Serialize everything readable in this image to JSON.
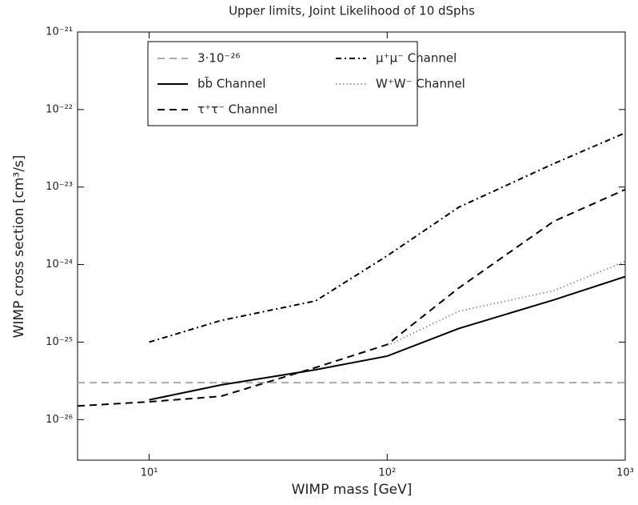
{
  "chart_data": {
    "type": "line",
    "title": "Upper limits, Joint Likelihood of 10 dSphs",
    "xlabel": "WIMP mass [GeV]",
    "ylabel": "WIMP cross section [cm³/s]",
    "xscale": "log",
    "yscale": "log",
    "xlim": [
      5,
      1000
    ],
    "ylim": [
      3e-27,
      1e-21
    ],
    "xticks": [
      {
        "value": 10,
        "label": "10¹"
      },
      {
        "value": 100,
        "label": "10²"
      },
      {
        "value": 1000,
        "label": "10³"
      }
    ],
    "yticks": [
      {
        "value": 1e-26,
        "label": "10⁻²⁶"
      },
      {
        "value": 1e-25,
        "label": "10⁻²⁵"
      },
      {
        "value": 1e-24,
        "label": "10⁻²⁴"
      },
      {
        "value": 1e-23,
        "label": "10⁻²³"
      },
      {
        "value": 1e-22,
        "label": "10⁻²²"
      },
      {
        "value": 1e-21,
        "label": "10⁻²¹"
      }
    ],
    "grid": false,
    "legend": "upper center",
    "series": [
      {
        "name": "3·10⁻²⁶",
        "color": "#aaaaaa",
        "dash": "dashed",
        "x": [
          5,
          1000
        ],
        "values": [
          3e-26,
          3e-26
        ]
      },
      {
        "name": "bb̄ Channel",
        "color": "#000000",
        "dash": "solid",
        "x": [
          10,
          20,
          50,
          100,
          200,
          500,
          1000
        ],
        "values": [
          1.8e-26,
          2.8e-26,
          4.4e-26,
          6.6e-26,
          1.5e-25,
          3.5e-25,
          7e-25
        ]
      },
      {
        "name": "τ⁺τ⁻ Channel",
        "color": "#000000",
        "dash": "dashed",
        "x": [
          5,
          10,
          20,
          50,
          100,
          200,
          500,
          1000
        ],
        "values": [
          1.5e-26,
          1.7e-26,
          2e-26,
          4.7e-26,
          9.3e-26,
          5e-25,
          3.6e-24,
          9.3e-24
        ]
      },
      {
        "name": "μ⁺μ⁻ Channel",
        "color": "#000000",
        "dash": "dashdot",
        "x": [
          10,
          20,
          50,
          100,
          200,
          500,
          1000
        ],
        "values": [
          1e-25,
          1.9e-25,
          3.4e-25,
          1.3e-24,
          5.5e-24,
          2e-23,
          5e-23
        ]
      },
      {
        "name": "W⁺W⁻ Channel",
        "color": "#999999",
        "dash": "dotted",
        "x": [
          100,
          200,
          500,
          1000
        ],
        "values": [
          9e-26,
          2.5e-25,
          4.6e-25,
          1.1e-24
        ]
      }
    ]
  }
}
